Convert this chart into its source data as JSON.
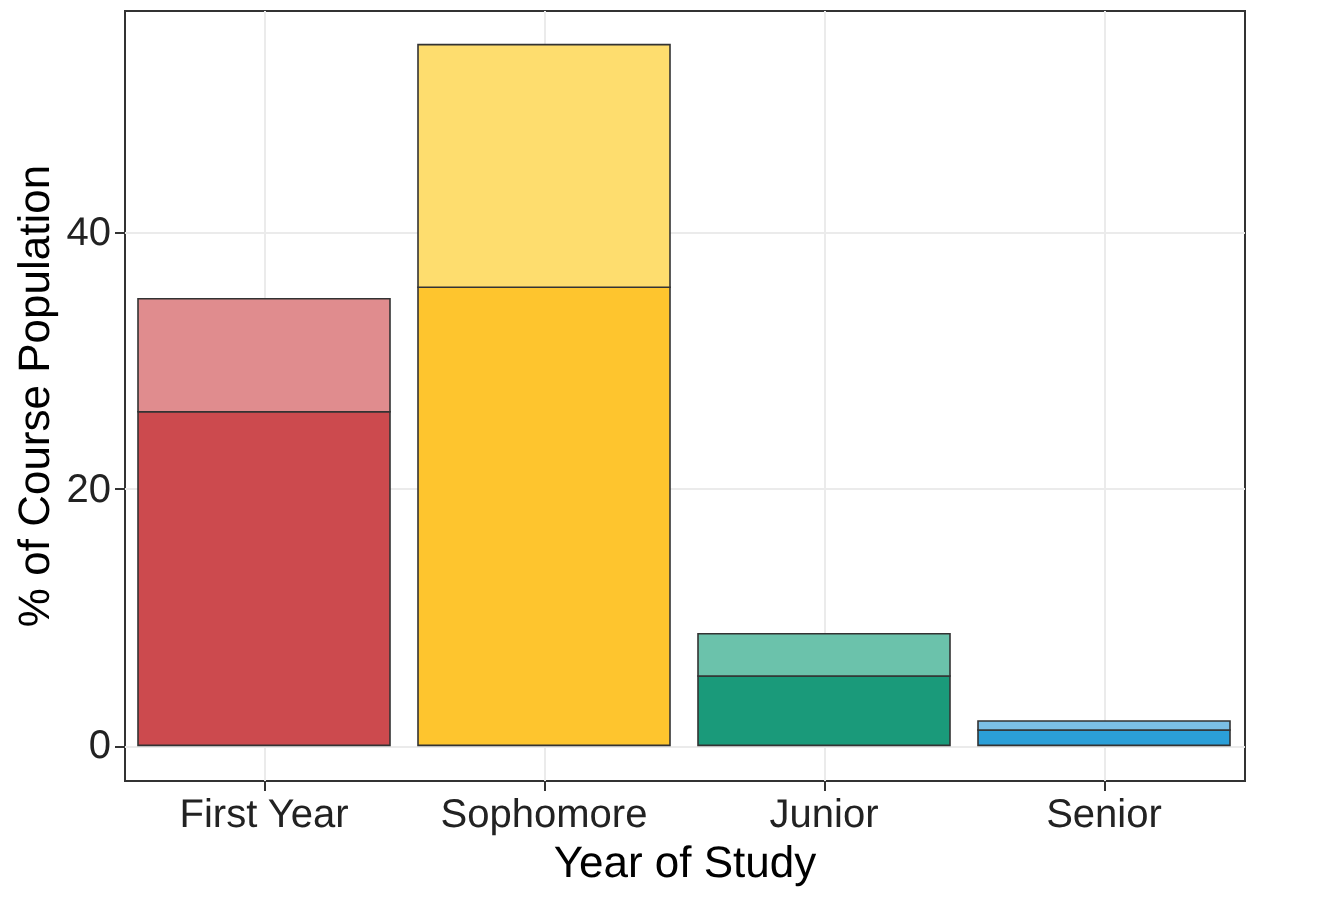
{
  "chart_data": {
    "type": "bar",
    "stacked": true,
    "xlabel": "Year of Study",
    "ylabel": "% of Course Population",
    "categories": [
      "First Year",
      "Sophomore",
      "Junior",
      "Senior"
    ],
    "series": [
      {
        "colors": [
          "#cc4a4e",
          "#fec52e",
          "#1a9a7a",
          "#2b9fd8"
        ],
        "values": [
          26.0,
          35.7,
          5.4,
          1.2
        ]
      },
      {
        "colors": [
          "#e08c8e",
          "#fedd6e",
          "#6bc2ab",
          "#7bbfe6"
        ],
        "values": [
          8.8,
          18.9,
          3.3,
          0.7
        ]
      }
    ],
    "ylim": [
      -2.7,
      57.3
    ],
    "yticks": [
      0,
      20,
      40
    ],
    "grid": true
  }
}
